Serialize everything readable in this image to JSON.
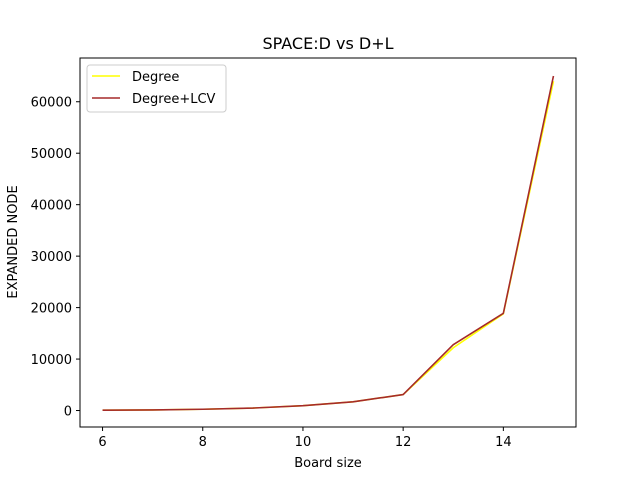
{
  "chart_data": {
    "type": "line",
    "title": "SPACE:D vs D+L",
    "xlabel": "Board size",
    "ylabel": "EXPANDED NODE",
    "x": [
      6,
      7,
      8,
      9,
      10,
      11,
      12,
      13,
      14,
      15
    ],
    "xlim": [
      5.55,
      15.45
    ],
    "ylim": [
      -3200,
      68500
    ],
    "xticks": [
      6,
      8,
      10,
      12,
      14
    ],
    "yticks": [
      0,
      10000,
      20000,
      30000,
      40000,
      50000,
      60000
    ],
    "grid": false,
    "legend_position": "top-left",
    "series": [
      {
        "name": "Degree",
        "color": "#ffff00",
        "values": [
          70,
          120,
          250,
          480,
          950,
          1700,
          3100,
          12200,
          18800,
          64000
        ]
      },
      {
        "name": "Degree+LCV",
        "color": "#a52a2a",
        "values": [
          70,
          120,
          250,
          480,
          950,
          1700,
          3100,
          12800,
          18900,
          65000
        ]
      }
    ]
  }
}
